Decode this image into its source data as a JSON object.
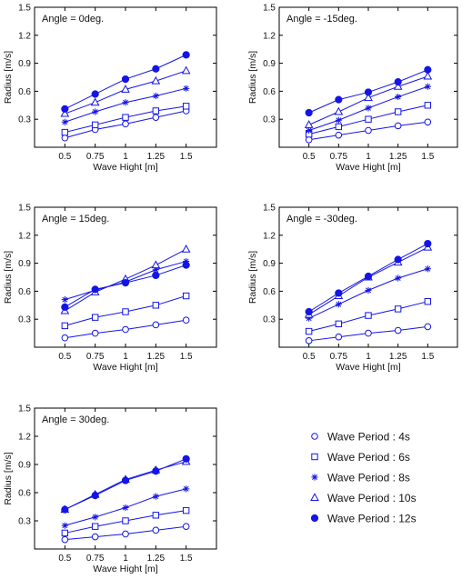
{
  "colors": {
    "series": "#1414e6",
    "axis": "#000000"
  },
  "legend": {
    "entries": [
      {
        "label": "Wave Period : 4s",
        "marker": "circle-open"
      },
      {
        "label": "Wave Period : 6s",
        "marker": "square-open"
      },
      {
        "label": "Wave Period : 8s",
        "marker": "asterisk"
      },
      {
        "label": "Wave Period : 10s",
        "marker": "triangle-open"
      },
      {
        "label": "Wave Period : 12s",
        "marker": "circle-filled"
      }
    ]
  },
  "chart_data": [
    {
      "type": "line",
      "annotation": "Angle = 0deg.",
      "xlabel": "Wave Hight [m]",
      "ylabel": "Radius [m/s]",
      "x": [
        0.5,
        0.75,
        1,
        1.25,
        1.5
      ],
      "x_ticks": [
        "0.5",
        "0.75",
        "1",
        "1.25",
        "1.5"
      ],
      "xlim": [
        0.25,
        1.75
      ],
      "ylim": [
        0,
        1.5
      ],
      "y_ticks": [
        "0.3",
        "0.6",
        "0.9",
        "1.2",
        "1.5"
      ],
      "series": [
        {
          "name": "Wave Period : 4s",
          "marker": "circle-open",
          "values": [
            0.1,
            0.19,
            0.25,
            0.32,
            0.39
          ]
        },
        {
          "name": "Wave Period : 6s",
          "marker": "square-open",
          "values": [
            0.16,
            0.24,
            0.32,
            0.39,
            0.44
          ]
        },
        {
          "name": "Wave Period : 8s",
          "marker": "asterisk",
          "values": [
            0.27,
            0.38,
            0.48,
            0.55,
            0.63
          ]
        },
        {
          "name": "Wave Period : 10s",
          "marker": "triangle-open",
          "values": [
            0.36,
            0.48,
            0.62,
            0.71,
            0.82
          ]
        },
        {
          "name": "Wave Period : 12s",
          "marker": "circle-filled",
          "values": [
            0.41,
            0.57,
            0.73,
            0.84,
            0.99
          ]
        }
      ]
    },
    {
      "type": "line",
      "annotation": "Angle = -15deg.",
      "xlabel": "Wave Hight [m]",
      "ylabel": "Radius [m/s]",
      "x": [
        0.5,
        0.75,
        1,
        1.25,
        1.5
      ],
      "x_ticks": [
        "0.5",
        "0.75",
        "1",
        "1.25",
        "1.5"
      ],
      "xlim": [
        0.25,
        1.75
      ],
      "ylim": [
        0,
        1.5
      ],
      "y_ticks": [
        "0.3",
        "0.6",
        "0.9",
        "1.2",
        "1.5"
      ],
      "series": [
        {
          "name": "Wave Period : 4s",
          "marker": "circle-open",
          "values": [
            0.08,
            0.13,
            0.18,
            0.23,
            0.27
          ]
        },
        {
          "name": "Wave Period : 6s",
          "marker": "square-open",
          "values": [
            0.14,
            0.22,
            0.3,
            0.38,
            0.45
          ]
        },
        {
          "name": "Wave Period : 8s",
          "marker": "asterisk",
          "values": [
            0.18,
            0.29,
            0.42,
            0.54,
            0.65
          ]
        },
        {
          "name": "Wave Period : 10s",
          "marker": "triangle-open",
          "values": [
            0.24,
            0.38,
            0.53,
            0.65,
            0.76
          ]
        },
        {
          "name": "Wave Period : 12s",
          "marker": "circle-filled",
          "values": [
            0.37,
            0.51,
            0.59,
            0.7,
            0.83
          ]
        }
      ]
    },
    {
      "type": "line",
      "annotation": "Angle = 15deg.",
      "xlabel": "Wave Hight [m]",
      "ylabel": "Radius [m/s]",
      "x": [
        0.5,
        0.75,
        1,
        1.25,
        1.5
      ],
      "x_ticks": [
        "0.5",
        "0.75",
        "1",
        "1.25",
        "1.5"
      ],
      "xlim": [
        0.25,
        1.75
      ],
      "ylim": [
        0,
        1.5
      ],
      "y_ticks": [
        "0.3",
        "0.6",
        "0.9",
        "1.2",
        "1.5"
      ],
      "series": [
        {
          "name": "Wave Period : 4s",
          "marker": "circle-open",
          "values": [
            0.1,
            0.15,
            0.19,
            0.24,
            0.29
          ]
        },
        {
          "name": "Wave Period : 6s",
          "marker": "square-open",
          "values": [
            0.23,
            0.32,
            0.38,
            0.45,
            0.55
          ]
        },
        {
          "name": "Wave Period : 8s",
          "marker": "asterisk",
          "values": [
            0.51,
            0.61,
            0.7,
            0.83,
            0.92
          ]
        },
        {
          "name": "Wave Period : 10s",
          "marker": "triangle-open",
          "values": [
            0.39,
            0.59,
            0.73,
            0.88,
            1.05
          ]
        },
        {
          "name": "Wave Period : 12s",
          "marker": "circle-filled",
          "values": [
            0.43,
            0.62,
            0.69,
            0.77,
            0.88
          ]
        }
      ]
    },
    {
      "type": "line",
      "annotation": "Angle = -30deg.",
      "xlabel": "Wave Hight [m]",
      "ylabel": "Radius [m/s]",
      "x": [
        0.5,
        0.75,
        1,
        1.25,
        1.5
      ],
      "x_ticks": [
        "0.5",
        "0.75",
        "1",
        "1.25",
        "1.5"
      ],
      "xlim": [
        0.25,
        1.75
      ],
      "ylim": [
        0,
        1.5
      ],
      "y_ticks": [
        "0.3",
        "0.6",
        "0.9",
        "1.2",
        "1.5"
      ],
      "series": [
        {
          "name": "Wave Period : 4s",
          "marker": "circle-open",
          "values": [
            0.07,
            0.11,
            0.15,
            0.18,
            0.22
          ]
        },
        {
          "name": "Wave Period : 6s",
          "marker": "square-open",
          "values": [
            0.17,
            0.25,
            0.34,
            0.41,
            0.49
          ]
        },
        {
          "name": "Wave Period : 8s",
          "marker": "asterisk",
          "values": [
            0.31,
            0.46,
            0.61,
            0.74,
            0.84
          ]
        },
        {
          "name": "Wave Period : 10s",
          "marker": "triangle-open",
          "values": [
            0.35,
            0.55,
            0.75,
            0.91,
            1.07
          ]
        },
        {
          "name": "Wave Period : 12s",
          "marker": "circle-filled",
          "values": [
            0.38,
            0.58,
            0.76,
            0.94,
            1.11
          ]
        }
      ]
    },
    {
      "type": "line",
      "annotation": "Angle = 30deg.",
      "xlabel": "Wave Hight [m]",
      "ylabel": "Radius [m/s]",
      "x": [
        0.5,
        0.75,
        1,
        1.25,
        1.5
      ],
      "x_ticks": [
        "0.5",
        "0.75",
        "1",
        "1.25",
        "1.5"
      ],
      "xlim": [
        0.25,
        1.75
      ],
      "ylim": [
        0,
        1.5
      ],
      "y_ticks": [
        "0.3",
        "0.6",
        "0.9",
        "1.2",
        "1.5"
      ],
      "series": [
        {
          "name": "Wave Period : 4s",
          "marker": "circle-open",
          "values": [
            0.1,
            0.13,
            0.16,
            0.2,
            0.24
          ]
        },
        {
          "name": "Wave Period : 6s",
          "marker": "square-open",
          "values": [
            0.17,
            0.24,
            0.3,
            0.36,
            0.41
          ]
        },
        {
          "name": "Wave Period : 8s",
          "marker": "asterisk",
          "values": [
            0.25,
            0.34,
            0.44,
            0.56,
            0.64
          ]
        },
        {
          "name": "Wave Period : 10s",
          "marker": "triangle-open",
          "values": [
            0.42,
            0.58,
            0.74,
            0.84,
            0.93
          ]
        },
        {
          "name": "Wave Period : 12s",
          "marker": "circle-filled",
          "values": [
            0.42,
            0.57,
            0.73,
            0.83,
            0.96
          ]
        }
      ]
    }
  ]
}
